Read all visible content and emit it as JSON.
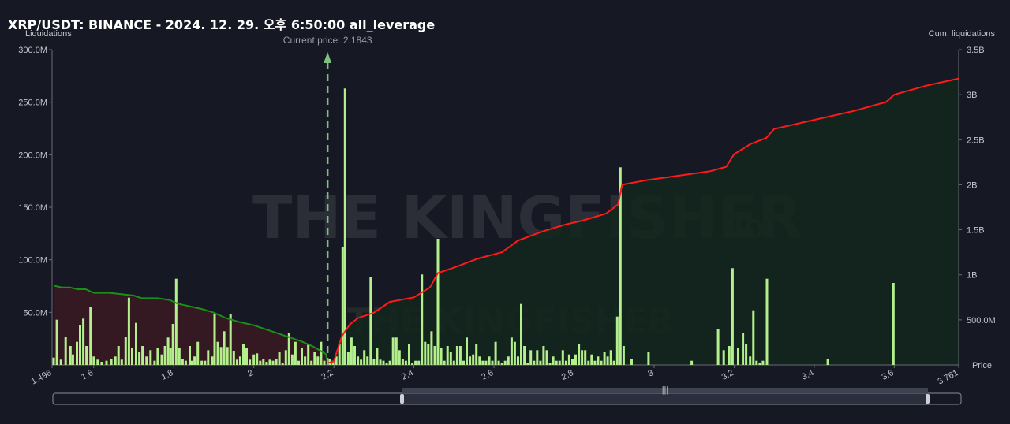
{
  "header": {
    "title": "XRP/USDT: BINANCE - 2024. 12. 29. 오후 6:50:00 all_leverage"
  },
  "watermark": {
    "brand": "THE KINGFISHER",
    "suffix": ".IO"
  },
  "colors": {
    "bar": "#b3f08c",
    "short_cum_line": "#1a8f1a",
    "long_cum_line": "#ff1a1a",
    "short_area": "#3a1a22",
    "long_area": "#13261c",
    "background": "#161823"
  },
  "chart_data": {
    "type": "bar",
    "x_axis": {
      "name": "Price",
      "range": [
        1.496,
        3.761
      ],
      "ticks": [
        1.6,
        1.8,
        2,
        2.2,
        2.4,
        2.6,
        2.8,
        3,
        3.2,
        3.4,
        3.6
      ],
      "tick_labels": [
        "1.6",
        "1.8",
        "2",
        "2.2",
        "2.4",
        "2.6",
        "2.8",
        "3",
        "3.2",
        "3.4",
        "3.6"
      ],
      "end_labels": [
        "1.496",
        "3.761"
      ]
    },
    "y_left": {
      "name": "Liquidations",
      "range": [
        0,
        300
      ],
      "ticks": [
        50,
        100,
        150,
        200,
        250,
        300
      ],
      "tick_labels": [
        "50.0M",
        "100.0M",
        "150.0M",
        "200.0M",
        "250.0M",
        "300.0M"
      ]
    },
    "y_right": {
      "name": "Cum. liquidations",
      "range": [
        0,
        3.5
      ],
      "ticks": [
        0.5,
        1,
        1.5,
        2,
        2.5,
        3,
        3.5
      ],
      "tick_labels": [
        "500.0M",
        "1B",
        "1.5B",
        "2B",
        "2.5B",
        "3B",
        "3.5B"
      ]
    },
    "current_price": {
      "value": 2.1843,
      "label": "Current price: 2.1843"
    },
    "bars": [
      [
        1.5,
        7
      ],
      [
        1.508,
        43
      ],
      [
        1.518,
        5
      ],
      [
        1.53,
        27
      ],
      [
        1.542,
        18
      ],
      [
        1.548,
        10
      ],
      [
        1.558,
        22
      ],
      [
        1.566,
        38
      ],
      [
        1.574,
        44
      ],
      [
        1.582,
        18
      ],
      [
        1.592,
        55
      ],
      [
        1.6,
        8
      ],
      [
        1.61,
        5
      ],
      [
        1.62,
        3
      ],
      [
        1.632,
        4
      ],
      [
        1.644,
        6
      ],
      [
        1.654,
        8
      ],
      [
        1.662,
        18
      ],
      [
        1.67,
        5
      ],
      [
        1.68,
        27
      ],
      [
        1.688,
        64
      ],
      [
        1.696,
        16
      ],
      [
        1.706,
        40
      ],
      [
        1.714,
        12
      ],
      [
        1.722,
        18
      ],
      [
        1.732,
        8
      ],
      [
        1.742,
        14
      ],
      [
        1.752,
        4
      ],
      [
        1.76,
        16
      ],
      [
        1.77,
        10
      ],
      [
        1.778,
        18
      ],
      [
        1.786,
        26
      ],
      [
        1.792,
        16
      ],
      [
        1.798,
        39
      ],
      [
        1.806,
        82
      ],
      [
        1.814,
        16
      ],
      [
        1.822,
        6
      ],
      [
        1.83,
        4
      ],
      [
        1.84,
        18
      ],
      [
        1.846,
        4
      ],
      [
        1.852,
        8
      ],
      [
        1.86,
        22
      ],
      [
        1.87,
        4
      ],
      [
        1.878,
        4
      ],
      [
        1.886,
        14
      ],
      [
        1.896,
        8
      ],
      [
        1.902,
        48
      ],
      [
        1.91,
        22
      ],
      [
        1.918,
        17
      ],
      [
        1.926,
        32
      ],
      [
        1.934,
        17
      ],
      [
        1.942,
        48
      ],
      [
        1.95,
        13
      ],
      [
        1.958,
        5
      ],
      [
        1.966,
        8
      ],
      [
        1.974,
        20
      ],
      [
        1.982,
        16
      ],
      [
        1.99,
        5
      ],
      [
        2.0,
        10
      ],
      [
        2.008,
        11
      ],
      [
        2.016,
        4
      ],
      [
        2.024,
        6
      ],
      [
        2.032,
        3
      ],
      [
        2.04,
        5
      ],
      [
        2.048,
        4
      ],
      [
        2.056,
        6
      ],
      [
        2.064,
        12
      ],
      [
        2.072,
        2
      ],
      [
        2.08,
        14
      ],
      [
        2.088,
        30
      ],
      [
        2.096,
        10
      ],
      [
        2.104,
        22
      ],
      [
        2.112,
        4
      ],
      [
        2.12,
        16
      ],
      [
        2.128,
        8
      ],
      [
        2.136,
        20
      ],
      [
        2.144,
        4
      ],
      [
        2.152,
        12
      ],
      [
        2.16,
        8
      ],
      [
        2.168,
        22
      ],
      [
        2.176,
        4
      ],
      [
        2.19,
        6
      ],
      [
        2.198,
        4
      ],
      [
        2.206,
        8
      ],
      [
        2.214,
        20
      ],
      [
        2.222,
        112
      ],
      [
        2.228,
        263
      ],
      [
        2.236,
        12
      ],
      [
        2.244,
        26
      ],
      [
        2.252,
        18
      ],
      [
        2.26,
        8
      ],
      [
        2.268,
        5
      ],
      [
        2.276,
        14
      ],
      [
        2.284,
        8
      ],
      [
        2.292,
        84
      ],
      [
        2.3,
        6
      ],
      [
        2.308,
        16
      ],
      [
        2.316,
        5
      ],
      [
        2.324,
        4
      ],
      [
        2.332,
        2
      ],
      [
        2.34,
        4
      ],
      [
        2.348,
        26
      ],
      [
        2.356,
        26
      ],
      [
        2.364,
        14
      ],
      [
        2.372,
        6
      ],
      [
        2.38,
        4
      ],
      [
        2.388,
        20
      ],
      [
        2.396,
        2
      ],
      [
        2.404,
        4
      ],
      [
        2.412,
        4
      ],
      [
        2.42,
        86
      ],
      [
        2.428,
        22
      ],
      [
        2.436,
        20
      ],
      [
        2.444,
        32
      ],
      [
        2.452,
        18
      ],
      [
        2.46,
        120
      ],
      [
        2.468,
        16
      ],
      [
        2.476,
        4
      ],
      [
        2.484,
        18
      ],
      [
        2.492,
        12
      ],
      [
        2.5,
        4
      ],
      [
        2.508,
        18
      ],
      [
        2.516,
        18
      ],
      [
        2.524,
        4
      ],
      [
        2.532,
        26
      ],
      [
        2.54,
        8
      ],
      [
        2.548,
        10
      ],
      [
        2.556,
        20
      ],
      [
        2.564,
        8
      ],
      [
        2.572,
        4
      ],
      [
        2.58,
        4
      ],
      [
        2.588,
        8
      ],
      [
        2.596,
        4
      ],
      [
        2.604,
        22
      ],
      [
        2.612,
        4
      ],
      [
        2.62,
        2
      ],
      [
        2.628,
        4
      ],
      [
        2.636,
        8
      ],
      [
        2.644,
        26
      ],
      [
        2.652,
        22
      ],
      [
        2.66,
        8
      ],
      [
        2.668,
        58
      ],
      [
        2.676,
        18
      ],
      [
        2.684,
        2
      ],
      [
        2.692,
        14
      ],
      [
        2.7,
        4
      ],
      [
        2.708,
        14
      ],
      [
        2.716,
        4
      ],
      [
        2.724,
        18
      ],
      [
        2.732,
        14
      ],
      [
        2.74,
        2
      ],
      [
        2.748,
        8
      ],
      [
        2.756,
        4
      ],
      [
        2.764,
        4
      ],
      [
        2.772,
        14
      ],
      [
        2.78,
        4
      ],
      [
        2.788,
        10
      ],
      [
        2.796,
        6
      ],
      [
        2.804,
        10
      ],
      [
        2.812,
        20
      ],
      [
        2.82,
        14
      ],
      [
        2.828,
        14
      ],
      [
        2.836,
        4
      ],
      [
        2.844,
        10
      ],
      [
        2.852,
        4
      ],
      [
        2.86,
        8
      ],
      [
        2.868,
        4
      ],
      [
        2.876,
        12
      ],
      [
        2.884,
        8
      ],
      [
        2.892,
        14
      ],
      [
        2.9,
        4
      ],
      [
        2.908,
        46
      ],
      [
        2.916,
        188
      ],
      [
        2.924,
        18
      ],
      [
        2.944,
        6
      ],
      [
        2.986,
        12
      ],
      [
        3.094,
        4
      ],
      [
        3.16,
        34
      ],
      [
        3.174,
        14
      ],
      [
        3.188,
        18
      ],
      [
        3.196,
        92
      ],
      [
        3.21,
        16
      ],
      [
        3.222,
        30
      ],
      [
        3.23,
        20
      ],
      [
        3.24,
        8
      ],
      [
        3.248,
        52
      ],
      [
        3.256,
        4
      ],
      [
        3.264,
        2
      ],
      [
        3.272,
        4
      ],
      [
        3.282,
        82
      ],
      [
        3.434,
        6
      ],
      [
        3.598,
        78
      ]
    ],
    "short_cum_line": [
      [
        1.5,
        0.88
      ],
      [
        1.52,
        0.86
      ],
      [
        1.54,
        0.86
      ],
      [
        1.56,
        0.84
      ],
      [
        1.58,
        0.84
      ],
      [
        1.6,
        0.8
      ],
      [
        1.64,
        0.8
      ],
      [
        1.68,
        0.78
      ],
      [
        1.7,
        0.77
      ],
      [
        1.72,
        0.74
      ],
      [
        1.76,
        0.74
      ],
      [
        1.79,
        0.72
      ],
      [
        1.81,
        0.68
      ],
      [
        1.84,
        0.65
      ],
      [
        1.87,
        0.62
      ],
      [
        1.9,
        0.58
      ],
      [
        1.93,
        0.52
      ],
      [
        1.96,
        0.48
      ],
      [
        2.0,
        0.44
      ],
      [
        2.04,
        0.38
      ],
      [
        2.08,
        0.32
      ],
      [
        2.12,
        0.26
      ],
      [
        2.15,
        0.2
      ],
      [
        2.18,
        0.12
      ],
      [
        2.184,
        0.05
      ]
    ],
    "long_cum_line": [
      [
        2.184,
        0.02
      ],
      [
        2.2,
        0.04
      ],
      [
        2.22,
        0.32
      ],
      [
        2.24,
        0.45
      ],
      [
        2.26,
        0.52
      ],
      [
        2.3,
        0.58
      ],
      [
        2.34,
        0.7
      ],
      [
        2.4,
        0.75
      ],
      [
        2.44,
        0.86
      ],
      [
        2.46,
        1.02
      ],
      [
        2.5,
        1.08
      ],
      [
        2.56,
        1.18
      ],
      [
        2.62,
        1.25
      ],
      [
        2.66,
        1.38
      ],
      [
        2.72,
        1.48
      ],
      [
        2.78,
        1.56
      ],
      [
        2.82,
        1.6
      ],
      [
        2.88,
        1.68
      ],
      [
        2.91,
        1.78
      ],
      [
        2.92,
        2.0
      ],
      [
        2.98,
        2.05
      ],
      [
        3.06,
        2.1
      ],
      [
        3.14,
        2.15
      ],
      [
        3.18,
        2.2
      ],
      [
        3.2,
        2.34
      ],
      [
        3.24,
        2.45
      ],
      [
        3.28,
        2.52
      ],
      [
        3.3,
        2.62
      ],
      [
        3.4,
        2.72
      ],
      [
        3.5,
        2.82
      ],
      [
        3.58,
        2.92
      ],
      [
        3.6,
        3.0
      ],
      [
        3.68,
        3.1
      ],
      [
        3.761,
        3.18
      ]
    ]
  },
  "slider": {
    "grip_glyph": "|||"
  }
}
